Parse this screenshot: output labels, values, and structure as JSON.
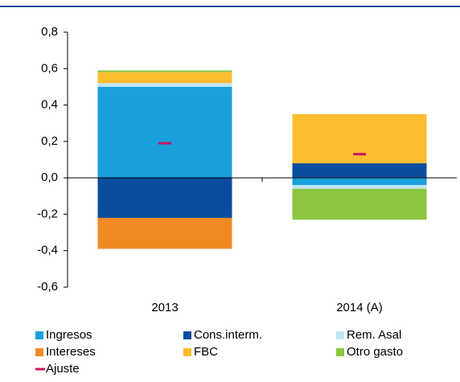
{
  "chart_data": {
    "type": "stacked-bar",
    "categories": [
      "2013",
      "2014 (A)"
    ],
    "ylim": [
      -0.6,
      0.8
    ],
    "yticks": [
      {
        "value": -0.6,
        "label": "-0,6"
      },
      {
        "value": -0.4,
        "label": "-0,4"
      },
      {
        "value": -0.2,
        "label": "-0,2"
      },
      {
        "value": 0,
        "label": "0,0"
      },
      {
        "value": 0.2,
        "label": "0,2"
      },
      {
        "value": 0.4,
        "label": "0,4"
      },
      {
        "value": 0.6,
        "label": "0,6"
      },
      {
        "value": 0.8,
        "label": "0,8"
      }
    ],
    "series": [
      {
        "name": "Ingresos",
        "color": "#1aa0dc",
        "values": [
          0.5,
          -0.04
        ]
      },
      {
        "name": "Cons.interm.",
        "color": "#0a4d9e",
        "values": [
          -0.22,
          0.08
        ]
      },
      {
        "name": "Rem. Asal",
        "color": "#bfe4f6",
        "values": [
          0.02,
          -0.02
        ]
      },
      {
        "name": "Intereses",
        "color": "#f28a24",
        "values": [
          -0.17,
          0
        ]
      },
      {
        "name": "FBC",
        "color": "#fdbd30",
        "values": [
          0.06,
          0.27
        ]
      },
      {
        "name": "Otro gasto",
        "color": "#8cc63f",
        "values": [
          0.01,
          -0.17
        ]
      },
      {
        "name": "Ajuste",
        "color": "#c8175f",
        "kind": "marker",
        "values": [
          0.19,
          0.13
        ]
      }
    ]
  }
}
